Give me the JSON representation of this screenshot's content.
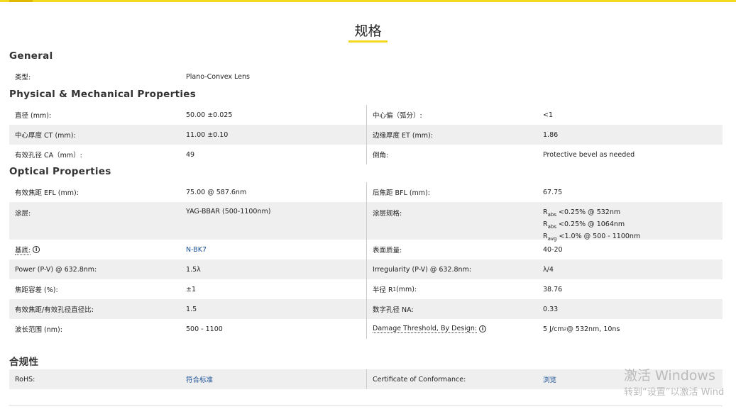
{
  "page": {
    "title": "规格"
  },
  "general": {
    "heading": "General",
    "rows": [
      {
        "label": "类型:",
        "value": "Plano-Convex Lens"
      }
    ]
  },
  "physical": {
    "heading": "Physical & Mechanical Properties",
    "rows": [
      {
        "l1": "直径 (mm):",
        "v1": "50.00 ±0.025",
        "l2": "中心偏（弧分）:",
        "v2": "<1"
      },
      {
        "l1": "中心厚度 CT (mm):",
        "v1": "11.00 ±0.10",
        "l2": "边缘厚度 ET (mm):",
        "v2": "1.86"
      },
      {
        "l1": "有效孔径 CA（mm）:",
        "v1": "49",
        "l2": "倒角:",
        "v2": "Protective bevel as needed"
      }
    ]
  },
  "optical": {
    "heading": "Optical Properties",
    "rows": [
      {
        "l1": "有效焦距 EFL (mm):",
        "v1": "75.00 @ 587.6nm",
        "l2": "后焦距 BFL (mm):",
        "v2": "67.75"
      },
      {
        "l1": "涂层:",
        "v1": "YAG-BBAR (500-1100nm)",
        "l2": "涂层规格:",
        "coating": [
          {
            "sym": "R",
            "sub": "abs",
            "text": " <0.25% @ 532nm"
          },
          {
            "sym": "R",
            "sub": "abs",
            "text": " <0.25% @ 1064nm"
          },
          {
            "sym": "R",
            "sub": "avg",
            "text": " <1.0% @ 500 - 1100nm"
          }
        ]
      },
      {
        "l1": "基底:",
        "v1": "N-BK7",
        "l2": "表面质量:",
        "v2": "40-20"
      },
      {
        "l1": "Power (P-V) @ 632.8nm:",
        "v1": "1.5λ",
        "l2": "Irregularity (P-V) @ 632.8nm:",
        "v2": "λ/4"
      },
      {
        "l1": "焦距容差 (%):",
        "v1": "±1",
        "l2a": "半径 R",
        "l2sub": "1",
        "l2b": " (mm):",
        "v2": "38.76"
      },
      {
        "l1": "有效焦距/有效孔径直径比:",
        "v1": "1.5",
        "l2": "数字孔径 NA:",
        "v2": "0.33"
      },
      {
        "l1": "波长范围 (nm):",
        "v1": "500 - 1100",
        "l2": "Damage Threshold, By Design:",
        "v2a": "5 J/cm",
        "v2sup": "2",
        "v2b": " @ 532nm, 10ns"
      }
    ]
  },
  "compliance": {
    "heading": "合规性",
    "rows": [
      {
        "l1": "RoHS:",
        "v1": "符合标准",
        "l2": "Certificate of Conformance:",
        "v2": "浏览"
      }
    ]
  },
  "watermark": {
    "line1": "激活 Windows",
    "line2": "转到“设置”以激活 Wind"
  },
  "colors": {
    "accent": "#f2d81e",
    "link": "#1a4f96",
    "row_alt": "#efefef"
  }
}
